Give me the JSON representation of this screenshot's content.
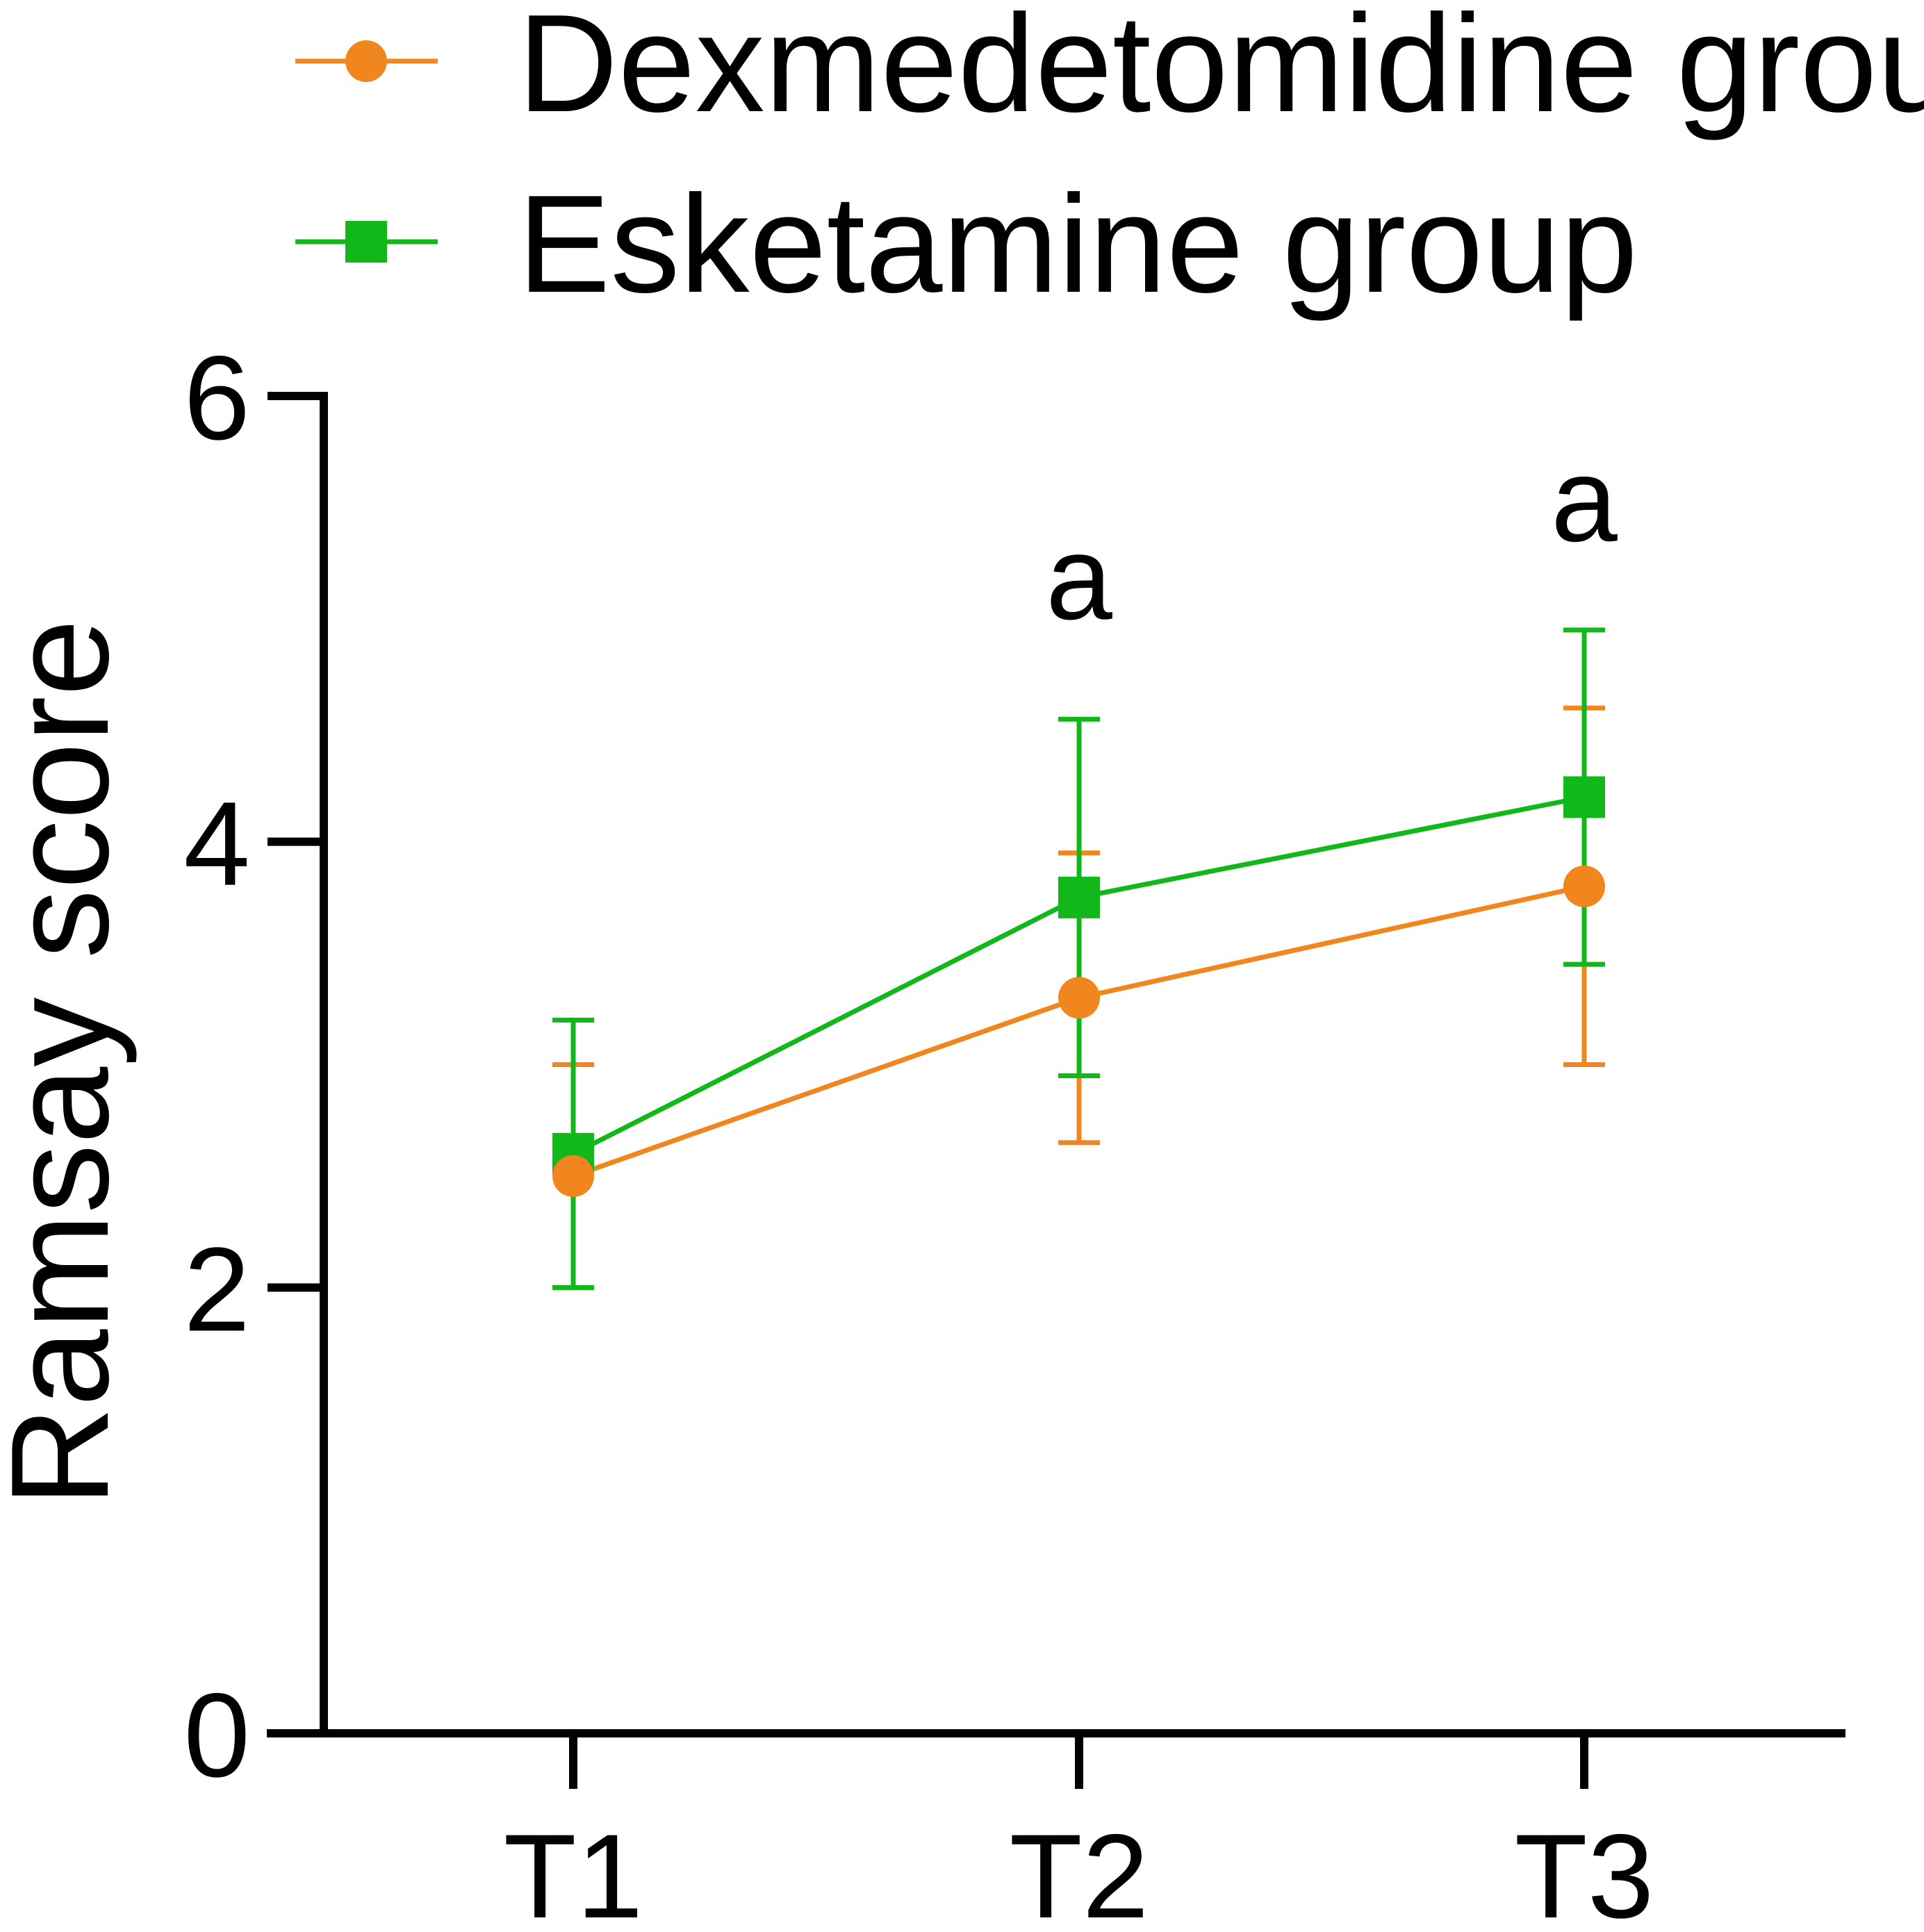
{
  "chart_data": {
    "type": "line",
    "title": "",
    "xlabel": "",
    "ylabel": "Ramsay score",
    "categories": [
      "T1",
      "T2",
      "T3"
    ],
    "ylim": [
      0,
      6
    ],
    "yticks": [
      "0",
      "2",
      "4",
      "6"
    ],
    "grid": false,
    "legend_position": "top",
    "series": [
      {
        "name": "Dexmedetomidine group",
        "color": "#F0861D",
        "marker": "circle",
        "values": [
          2.5,
          3.3,
          3.8
        ],
        "error": [
          0.5,
          0.65,
          0.8
        ]
      },
      {
        "name": "Esketamine group",
        "color": "#12B81A",
        "marker": "square",
        "values": [
          2.6,
          3.75,
          4.2
        ],
        "error": [
          0.6,
          0.8,
          0.75
        ]
      }
    ],
    "annotations": [
      {
        "category": "T2",
        "text": "a",
        "y": 5.0
      },
      {
        "category": "T3",
        "text": "a",
        "y": 5.35
      }
    ]
  }
}
